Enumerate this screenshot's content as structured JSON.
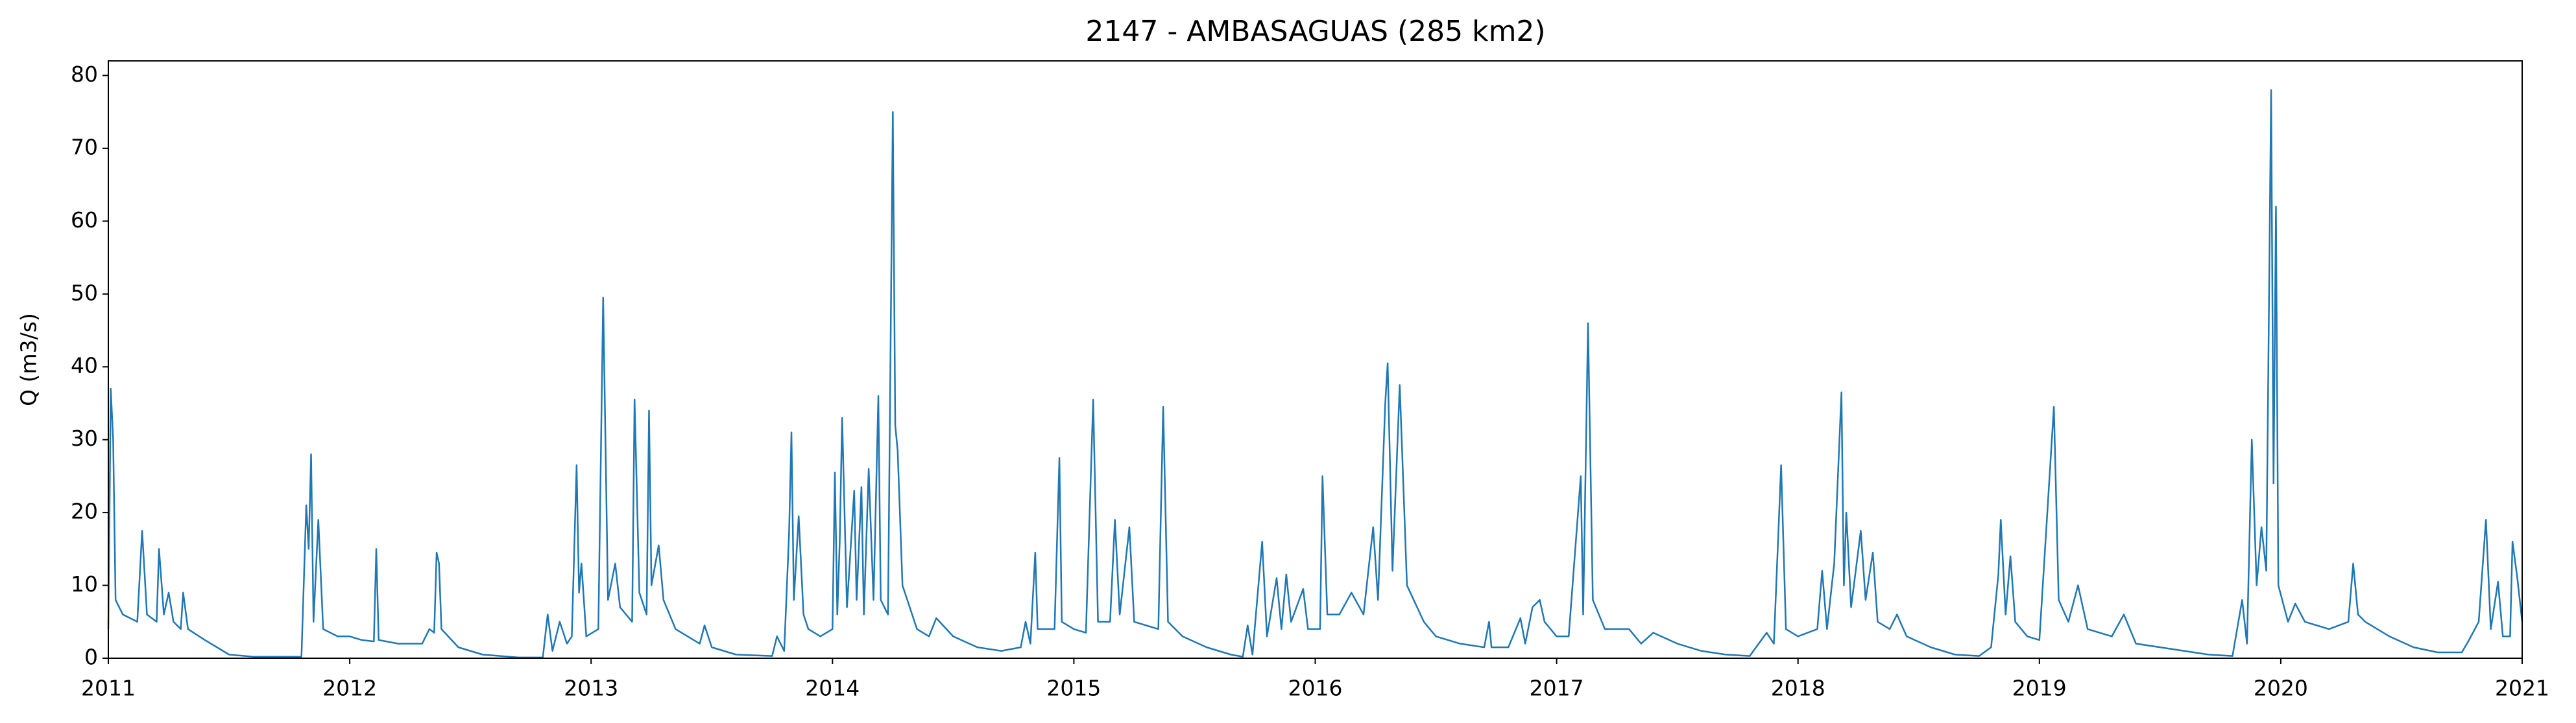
{
  "chart_data": {
    "type": "line",
    "title": "2147 - AMBASAGUAS (285 km2)",
    "y_label": "Q (m3/s)",
    "series": [
      {
        "name": "Q",
        "color": "#1f77b4",
        "x": [
          2011.0,
          2011.01,
          2011.02,
          2011.03,
          2011.06,
          2011.12,
          2011.14,
          2011.16,
          2011.2,
          2011.21,
          2011.23,
          2011.25,
          2011.27,
          2011.3,
          2011.31,
          2011.33,
          2011.4,
          2011.5,
          2011.6,
          2011.8,
          2011.82,
          2011.83,
          2011.84,
          2011.85,
          2011.87,
          2011.89,
          2011.95,
          2012.0,
          2012.05,
          2012.1,
          2012.11,
          2012.12,
          2012.2,
          2012.3,
          2012.33,
          2012.35,
          2012.36,
          2012.37,
          2012.38,
          2012.45,
          2012.55,
          2012.7,
          2012.8,
          2012.82,
          2012.84,
          2012.87,
          2012.9,
          2012.92,
          2012.94,
          2012.95,
          2012.96,
          2012.98,
          2013.03,
          2013.05,
          2013.07,
          2013.1,
          2013.12,
          2013.17,
          2013.18,
          2013.2,
          2013.23,
          2013.24,
          2013.25,
          2013.28,
          2013.3,
          2013.35,
          2013.45,
          2013.47,
          2013.5,
          2013.6,
          2013.75,
          2013.77,
          2013.8,
          2013.82,
          2013.83,
          2013.84,
          2013.86,
          2013.88,
          2013.9,
          2013.95,
          2014.0,
          2014.01,
          2014.02,
          2014.03,
          2014.04,
          2014.06,
          2014.09,
          2014.1,
          2014.12,
          2014.13,
          2014.15,
          2014.17,
          2014.19,
          2014.2,
          2014.23,
          2014.25,
          2014.26,
          2014.27,
          2014.29,
          2014.35,
          2014.4,
          2014.43,
          2014.5,
          2014.6,
          2014.7,
          2014.78,
          2014.8,
          2014.82,
          2014.84,
          2014.85,
          2014.92,
          2014.94,
          2014.95,
          2015.0,
          2015.05,
          2015.08,
          2015.1,
          2015.15,
          2015.17,
          2015.19,
          2015.23,
          2015.25,
          2015.35,
          2015.37,
          2015.39,
          2015.45,
          2015.55,
          2015.65,
          2015.7,
          2015.72,
          2015.74,
          2015.78,
          2015.8,
          2015.84,
          2015.86,
          2015.88,
          2015.9,
          2015.95,
          2015.97,
          2016.02,
          2016.03,
          2016.05,
          2016.1,
          2016.15,
          2016.2,
          2016.24,
          2016.26,
          2016.29,
          2016.3,
          2016.32,
          2016.35,
          2016.38,
          2016.45,
          2016.5,
          2016.6,
          2016.7,
          2016.72,
          2016.73,
          2016.8,
          2016.85,
          2016.87,
          2016.9,
          2016.93,
          2016.95,
          2017.0,
          2017.05,
          2017.1,
          2017.11,
          2017.13,
          2017.15,
          2017.2,
          2017.3,
          2017.35,
          2017.4,
          2017.5,
          2017.6,
          2017.7,
          2017.8,
          2017.87,
          2017.9,
          2017.93,
          2017.95,
          2018.0,
          2018.08,
          2018.1,
          2018.12,
          2018.15,
          2018.18,
          2018.19,
          2018.2,
          2018.22,
          2018.26,
          2018.28,
          2018.31,
          2018.33,
          2018.38,
          2018.41,
          2018.45,
          2018.55,
          2018.65,
          2018.75,
          2018.8,
          2018.83,
          2018.84,
          2018.86,
          2018.88,
          2018.9,
          2018.95,
          2019.0,
          2019.06,
          2019.08,
          2019.12,
          2019.16,
          2019.2,
          2019.3,
          2019.35,
          2019.4,
          2019.5,
          2019.6,
          2019.7,
          2019.8,
          2019.84,
          2019.86,
          2019.88,
          2019.9,
          2019.92,
          2019.94,
          2019.96,
          2019.97,
          2019.98,
          2019.99,
          2020.03,
          2020.06,
          2020.1,
          2020.2,
          2020.28,
          2020.3,
          2020.32,
          2020.35,
          2020.45,
          2020.55,
          2020.65,
          2020.75,
          2020.78,
          2020.82,
          2020.85,
          2020.87,
          2020.9,
          2020.92,
          2020.95,
          2020.96,
          2020.98,
          2021.0
        ],
        "values": [
          4,
          37,
          30,
          8,
          6,
          5,
          17.5,
          6,
          5,
          15,
          6,
          9,
          5,
          4,
          9,
          4,
          2.5,
          0.5,
          0.2,
          0.2,
          21,
          15,
          28,
          5,
          19,
          4,
          3,
          3,
          2.5,
          2.3,
          15,
          2.5,
          2,
          2,
          4,
          3.5,
          14.5,
          13,
          4,
          1.5,
          0.5,
          0.1,
          0.1,
          6,
          1,
          5,
          2,
          3,
          26.5,
          9,
          13,
          3,
          4,
          49.5,
          8,
          13,
          7,
          5,
          35.5,
          9,
          6,
          34,
          10,
          15.5,
          8,
          4,
          2,
          4.5,
          1.5,
          0.5,
          0.3,
          3,
          1,
          17,
          31,
          8,
          19.5,
          6,
          4,
          3,
          4,
          25.5,
          6,
          16,
          33,
          7,
          23,
          8,
          23.5,
          6,
          26,
          8,
          36,
          8,
          6,
          75,
          32,
          28.5,
          10,
          4,
          3,
          5.5,
          3,
          1.5,
          1,
          1.5,
          5,
          2,
          14.5,
          4,
          4,
          27.5,
          5,
          4,
          3.5,
          35.5,
          5,
          5,
          19,
          6,
          18,
          5,
          4,
          34.5,
          5,
          3,
          1.5,
          0.5,
          0.2,
          4.5,
          0.5,
          16,
          3,
          11,
          4,
          11.5,
          5,
          9.5,
          4,
          4,
          25,
          6,
          6,
          9,
          6,
          18,
          8,
          35,
          40.5,
          12,
          37.5,
          10,
          5,
          3,
          2,
          1.5,
          5,
          1.5,
          1.5,
          5.5,
          2,
          7,
          8,
          5,
          3,
          3,
          25,
          6,
          46,
          8,
          4,
          4,
          2,
          3.5,
          2,
          1,
          0.5,
          0.3,
          3.5,
          2,
          26.5,
          4,
          3,
          4,
          12,
          4,
          13,
          36.5,
          10,
          20,
          7,
          17.5,
          8,
          14.5,
          5,
          4,
          6,
          3,
          1.5,
          0.5,
          0.3,
          1.5,
          11.5,
          19,
          6,
          14,
          5,
          3,
          2.5,
          34.5,
          8,
          5,
          10,
          4,
          3,
          6,
          2,
          1.5,
          1,
          0.5,
          0.3,
          8,
          2,
          30,
          10,
          18,
          12,
          78,
          24,
          62,
          10,
          5,
          7.5,
          5,
          4,
          5,
          13,
          6,
          5,
          3,
          1.5,
          0.8,
          0.8,
          2.5,
          5,
          19,
          4,
          10.5,
          3,
          3,
          16,
          11,
          5
        ]
      }
    ],
    "xlim": [
      2011,
      2021
    ],
    "xticks": [
      2011,
      2012,
      2013,
      2014,
      2015,
      2016,
      2017,
      2018,
      2019,
      2020,
      2021
    ],
    "ylim": [
      0,
      82
    ],
    "yticks": [
      0,
      10,
      20,
      30,
      40,
      50,
      60,
      70,
      80
    ]
  }
}
